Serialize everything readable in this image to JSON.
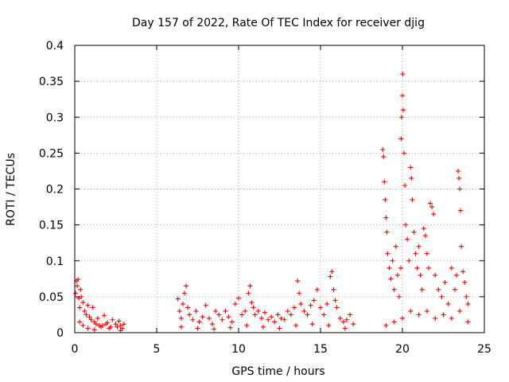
{
  "colors": {
    "points": "#ff0000",
    "axes": "#000000",
    "grid": "#a0a0a0",
    "background": "#ffffff"
  },
  "chart_data": {
    "type": "scatter",
    "title": "Day 157 of 2022, Rate Of TEC Index for receiver djig",
    "xlabel": "GPS time / hours",
    "ylabel": "ROTI / TECUs",
    "xlim": [
      0,
      25
    ],
    "ylim": [
      0,
      0.4
    ],
    "xticks": [
      0,
      5,
      10,
      15,
      20,
      25
    ],
    "xtick_labels": [
      "0",
      "5",
      "10",
      "15",
      "20",
      "25"
    ],
    "yticks": [
      0,
      0.05,
      0.1,
      0.15,
      0.2,
      0.25,
      0.3,
      0.35,
      0.4
    ],
    "ytick_labels": [
      "0",
      "0.05",
      "0.1",
      "0.15",
      "0.2",
      "0.25",
      "0.3",
      "0.35",
      "0.4"
    ],
    "grid": true,
    "marker": "+",
    "series": [
      {
        "name": "ROTI",
        "points": [
          [
            0.05,
            0.055
          ],
          [
            0.1,
            0.072
          ],
          [
            0.15,
            0.065
          ],
          [
            0.2,
            0.074
          ],
          [
            0.25,
            0.048
          ],
          [
            0.3,
            0.035
          ],
          [
            0.35,
            0.06
          ],
          [
            0.4,
            0.05
          ],
          [
            0.5,
            0.042
          ],
          [
            0.6,
            0.03
          ],
          [
            0.7,
            0.025
          ],
          [
            0.8,
            0.038
          ],
          [
            0.9,
            0.022
          ],
          [
            1.0,
            0.018
          ],
          [
            1.1,
            0.035
          ],
          [
            1.2,
            0.015
          ],
          [
            1.3,
            0.012
          ],
          [
            1.4,
            0.02
          ],
          [
            1.5,
            0.01
          ],
          [
            1.6,
            0.008
          ],
          [
            1.8,
            0.024
          ],
          [
            1.9,
            0.012
          ],
          [
            2.0,
            0.014
          ],
          [
            2.1,
            0.006
          ],
          [
            2.3,
            0.018
          ],
          [
            2.5,
            0.012
          ],
          [
            2.6,
            0.008
          ],
          [
            2.7,
            0.016
          ],
          [
            2.8,
            0.01
          ],
          [
            2.9,
            0.006
          ],
          [
            3.0,
            0.012
          ],
          [
            0.3,
            0.015
          ],
          [
            0.5,
            0.01
          ],
          [
            0.8,
            0.006
          ],
          [
            1.2,
            0.004
          ],
          [
            1.7,
            0.01
          ],
          [
            2.2,
            0.008
          ],
          [
            2.8,
            0.003
          ],
          [
            6.3,
            0.047
          ],
          [
            6.4,
            0.03
          ],
          [
            6.5,
            0.02
          ],
          [
            6.6,
            0.04
          ],
          [
            6.7,
            0.055
          ],
          [
            6.8,
            0.065
          ],
          [
            6.9,
            0.035
          ],
          [
            7.0,
            0.025
          ],
          [
            7.2,
            0.018
          ],
          [
            7.4,
            0.03
          ],
          [
            7.6,
            0.015
          ],
          [
            7.8,
            0.022
          ],
          [
            8.0,
            0.038
          ],
          [
            8.2,
            0.02
          ],
          [
            8.4,
            0.012
          ],
          [
            8.6,
            0.03
          ],
          [
            8.8,
            0.025
          ],
          [
            9.0,
            0.018
          ],
          [
            9.2,
            0.03
          ],
          [
            9.4,
            0.022
          ],
          [
            9.6,
            0.015
          ],
          [
            9.8,
            0.04
          ],
          [
            10.0,
            0.048
          ],
          [
            10.2,
            0.025
          ],
          [
            10.4,
            0.03
          ],
          [
            10.6,
            0.055
          ],
          [
            10.7,
            0.065
          ],
          [
            10.8,
            0.042
          ],
          [
            10.9,
            0.035
          ],
          [
            11.0,
            0.025
          ],
          [
            11.2,
            0.03
          ],
          [
            11.4,
            0.02
          ],
          [
            11.6,
            0.028
          ],
          [
            11.8,
            0.018
          ],
          [
            12.0,
            0.022
          ],
          [
            12.2,
            0.015
          ],
          [
            12.4,
            0.025
          ],
          [
            12.6,
            0.02
          ],
          [
            12.8,
            0.018
          ],
          [
            13.0,
            0.03
          ],
          [
            13.2,
            0.025
          ],
          [
            13.4,
            0.035
          ],
          [
            13.6,
            0.072
          ],
          [
            13.7,
            0.055
          ],
          [
            13.8,
            0.04
          ],
          [
            14.0,
            0.03
          ],
          [
            14.2,
            0.025
          ],
          [
            14.4,
            0.038
          ],
          [
            14.6,
            0.045
          ],
          [
            14.8,
            0.06
          ],
          [
            15.0,
            0.035
          ],
          [
            15.2,
            0.025
          ],
          [
            15.4,
            0.04
          ],
          [
            15.6,
            0.078
          ],
          [
            15.7,
            0.085
          ],
          [
            15.8,
            0.06
          ],
          [
            15.9,
            0.045
          ],
          [
            16.0,
            0.035
          ],
          [
            16.2,
            0.02
          ],
          [
            16.4,
            0.015
          ],
          [
            16.6,
            0.018
          ],
          [
            16.8,
            0.025
          ],
          [
            17.0,
            0.012
          ],
          [
            6.5,
            0.008
          ],
          [
            7.5,
            0.006
          ],
          [
            8.5,
            0.005
          ],
          [
            9.5,
            0.007
          ],
          [
            10.5,
            0.01
          ],
          [
            11.5,
            0.008
          ],
          [
            12.5,
            0.006
          ],
          [
            13.5,
            0.01
          ],
          [
            14.5,
            0.012
          ],
          [
            15.5,
            0.01
          ],
          [
            16.5,
            0.006
          ],
          [
            18.8,
            0.255
          ],
          [
            18.85,
            0.245
          ],
          [
            18.9,
            0.21
          ],
          [
            18.95,
            0.185
          ],
          [
            19.0,
            0.16
          ],
          [
            19.05,
            0.14
          ],
          [
            19.1,
            0.11
          ],
          [
            19.2,
            0.09
          ],
          [
            19.3,
            0.075
          ],
          [
            19.4,
            0.1
          ],
          [
            19.5,
            0.06
          ],
          [
            19.6,
            0.12
          ],
          [
            19.7,
            0.08
          ],
          [
            19.8,
            0.05
          ],
          [
            19.9,
            0.09
          ],
          [
            19.92,
            0.27
          ],
          [
            19.95,
            0.3
          ],
          [
            20.0,
            0.33
          ],
          [
            20.02,
            0.36
          ],
          [
            20.05,
            0.31
          ],
          [
            20.1,
            0.25
          ],
          [
            20.15,
            0.205
          ],
          [
            20.2,
            0.15
          ],
          [
            20.3,
            0.13
          ],
          [
            20.4,
            0.1
          ],
          [
            20.5,
            0.23
          ],
          [
            20.55,
            0.215
          ],
          [
            20.6,
            0.185
          ],
          [
            20.7,
            0.14
          ],
          [
            20.8,
            0.11
          ],
          [
            20.9,
            0.09
          ],
          [
            21.0,
            0.12
          ],
          [
            21.1,
            0.08
          ],
          [
            21.2,
            0.06
          ],
          [
            21.3,
            0.145
          ],
          [
            21.4,
            0.135
          ],
          [
            21.5,
            0.11
          ],
          [
            21.6,
            0.09
          ],
          [
            21.7,
            0.18
          ],
          [
            21.8,
            0.175
          ],
          [
            21.9,
            0.165
          ],
          [
            22.0,
            0.08
          ],
          [
            22.2,
            0.06
          ],
          [
            22.4,
            0.05
          ],
          [
            22.6,
            0.07
          ],
          [
            22.8,
            0.04
          ],
          [
            23.0,
            0.09
          ],
          [
            23.2,
            0.06
          ],
          [
            23.3,
            0.08
          ],
          [
            23.4,
            0.225
          ],
          [
            23.45,
            0.215
          ],
          [
            23.5,
            0.2
          ],
          [
            23.55,
            0.17
          ],
          [
            23.6,
            0.12
          ],
          [
            23.7,
            0.085
          ],
          [
            23.8,
            0.07
          ],
          [
            23.9,
            0.05
          ],
          [
            24.0,
            0.04
          ],
          [
            19.0,
            0.01
          ],
          [
            19.5,
            0.015
          ],
          [
            20.0,
            0.02
          ],
          [
            20.5,
            0.03
          ],
          [
            21.0,
            0.025
          ],
          [
            21.5,
            0.03
          ],
          [
            22.0,
            0.02
          ],
          [
            22.5,
            0.025
          ],
          [
            23.0,
            0.02
          ],
          [
            23.5,
            0.03
          ],
          [
            24.0,
            0.015
          ]
        ]
      }
    ]
  }
}
